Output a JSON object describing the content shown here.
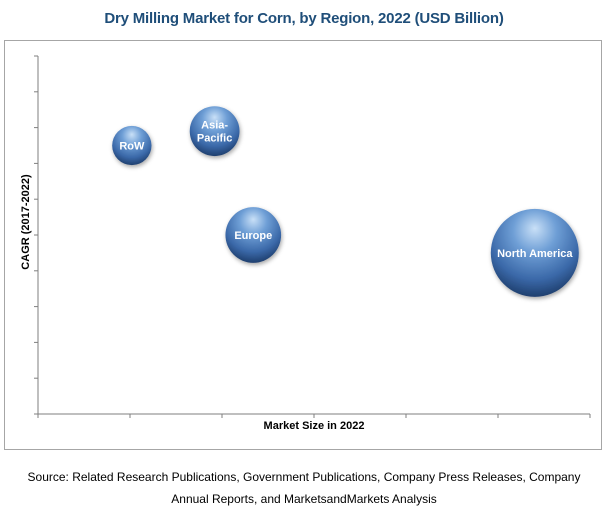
{
  "chart_data": {
    "type": "bubble",
    "title": "Dry Milling Market for Corn, by Region, 2022 (USD Billion)",
    "xlabel": "Market Size in 2022",
    "ylabel": "CAGR (2017-2022)",
    "grid": false,
    "xlim": [
      0,
      10
    ],
    "ylim": [
      0,
      10
    ],
    "points": [
      {
        "label": "RoW",
        "label_lines": [
          "RoW"
        ],
        "x": 1.7,
        "y": 7.5,
        "size": 1.0
      },
      {
        "label": "Asia-Pacific",
        "label_lines": [
          "Asia-",
          "Pacific"
        ],
        "x": 3.2,
        "y": 7.9,
        "size": 1.6
      },
      {
        "label": "Europe",
        "label_lines": [
          "Europe"
        ],
        "x": 3.9,
        "y": 5.0,
        "size": 2.0
      },
      {
        "label": "North America",
        "label_lines": [
          "North America"
        ],
        "x": 9.0,
        "y": 4.5,
        "size": 5.0
      }
    ]
  },
  "source": {
    "line1": "Source: Related Research Publications, Government Publications, Company Press Releases, Company",
    "line2": "Annual Reports, and MarketsandMarkets Analysis"
  },
  "colors": {
    "title": "#1f4e79",
    "bubble_light": "#9cc3ea",
    "bubble_mid": "#4f81bd",
    "bubble_dark": "#1f3f6e",
    "axis": "#7f7f7f"
  }
}
